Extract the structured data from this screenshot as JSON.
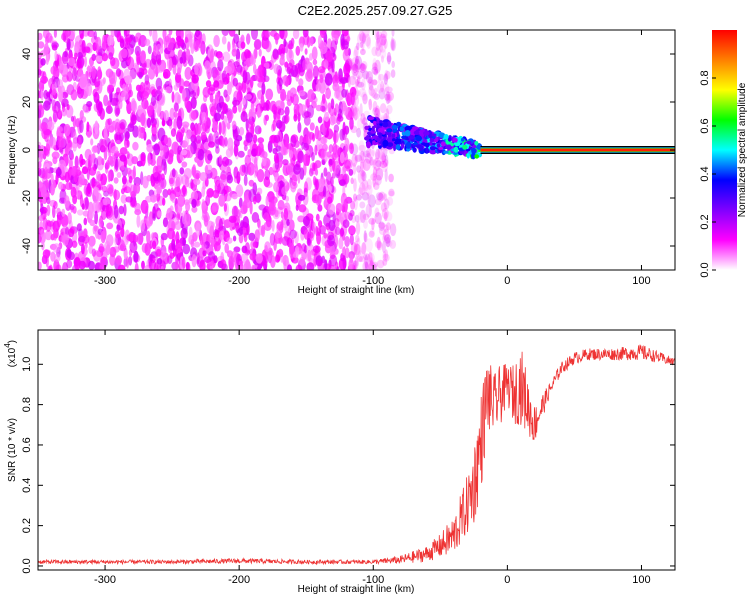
{
  "title": "C2E2.2025.257.09.27.G25",
  "colors": {
    "signal": "#ee3333",
    "axis": "#000000"
  },
  "chart_data": [
    {
      "type": "heatmap",
      "xlabel": "Height of straight line (km)",
      "ylabel": "Frequency (Hz)",
      "xlim": [
        -350,
        125
      ],
      "ylim": [
        -50,
        50
      ],
      "x_ticks": [
        -300,
        -200,
        -100,
        0,
        100
      ],
      "y_ticks": [
        -40,
        -20,
        0,
        20,
        40
      ],
      "colorbar": {
        "label": "Normalized spectral amplitude",
        "range": [
          0,
          1
        ],
        "ticks": [
          "0.0",
          "0.2",
          "0.4",
          "0.6",
          "0.8"
        ],
        "tick_values": [
          0,
          0.2,
          0.4,
          0.6,
          0.8
        ],
        "colormap": [
          "#ffffff",
          "#ff00ff",
          "#8000ff",
          "#0000ff",
          "#00ffff",
          "#00ff00",
          "#ffff00",
          "#ff8000",
          "#ff0000"
        ]
      },
      "regions": [
        {
          "x_range": [
            -350,
            -95
          ],
          "f_range": [
            -50,
            50
          ],
          "amplitude": "0.05-0.15",
          "description_color": "purple noise"
        },
        {
          "x_range": [
            -105,
            -20
          ],
          "f_center_at_start": 8,
          "f_center_at_end": 0,
          "amplitude": "0.2-0.5"
        },
        {
          "x_range": [
            -20,
            125
          ],
          "f_center": 0,
          "amplitude": "0.9-1.0"
        }
      ]
    },
    {
      "type": "line",
      "xlabel": "Height of straight line (km)",
      "ylabel": "SNR (10 * v/v)",
      "multiplier": "(x10",
      "multiplier_exp": "4",
      "xlim": [
        -350,
        125
      ],
      "ylim": [
        -0.02,
        1.17
      ],
      "x_ticks": [
        -300,
        -200,
        -100,
        0,
        100
      ],
      "y_ticks": [
        "0.0",
        "0.2",
        "0.4",
        "0.6",
        "0.8",
        "1.0"
      ],
      "y_tick_values": [
        0,
        0.2,
        0.4,
        0.6,
        0.8,
        1.0
      ],
      "series": [
        {
          "color": "#ee3333",
          "x": [
            -350,
            -300,
            -250,
            -200,
            -150,
            -110,
            -100,
            -80,
            -60,
            -50,
            -40,
            -30,
            -25,
            -20,
            -15,
            -10,
            -5,
            0,
            5,
            10,
            20,
            30,
            40,
            50,
            60,
            80,
            100,
            110,
            125
          ],
          "y": [
            0.02,
            0.02,
            0.02,
            0.025,
            0.02,
            0.02,
            0.02,
            0.03,
            0.06,
            0.1,
            0.15,
            0.3,
            0.4,
            0.6,
            0.85,
            0.8,
            0.85,
            0.9,
            0.85,
            0.9,
            0.7,
            0.85,
            0.98,
            1.03,
            1.05,
            1.05,
            1.06,
            1.04,
            1.01
          ],
          "noise": [
            0.01,
            0.01,
            0.01,
            0.012,
            0.01,
            0.01,
            0.01,
            0.02,
            0.04,
            0.06,
            0.1,
            0.15,
            0.2,
            0.25,
            0.2,
            0.15,
            0.15,
            0.1,
            0.15,
            0.2,
            0.1,
            0.04,
            0.03,
            0.03,
            0.03,
            0.03,
            0.04,
            0.03,
            0.02
          ]
        }
      ]
    }
  ]
}
